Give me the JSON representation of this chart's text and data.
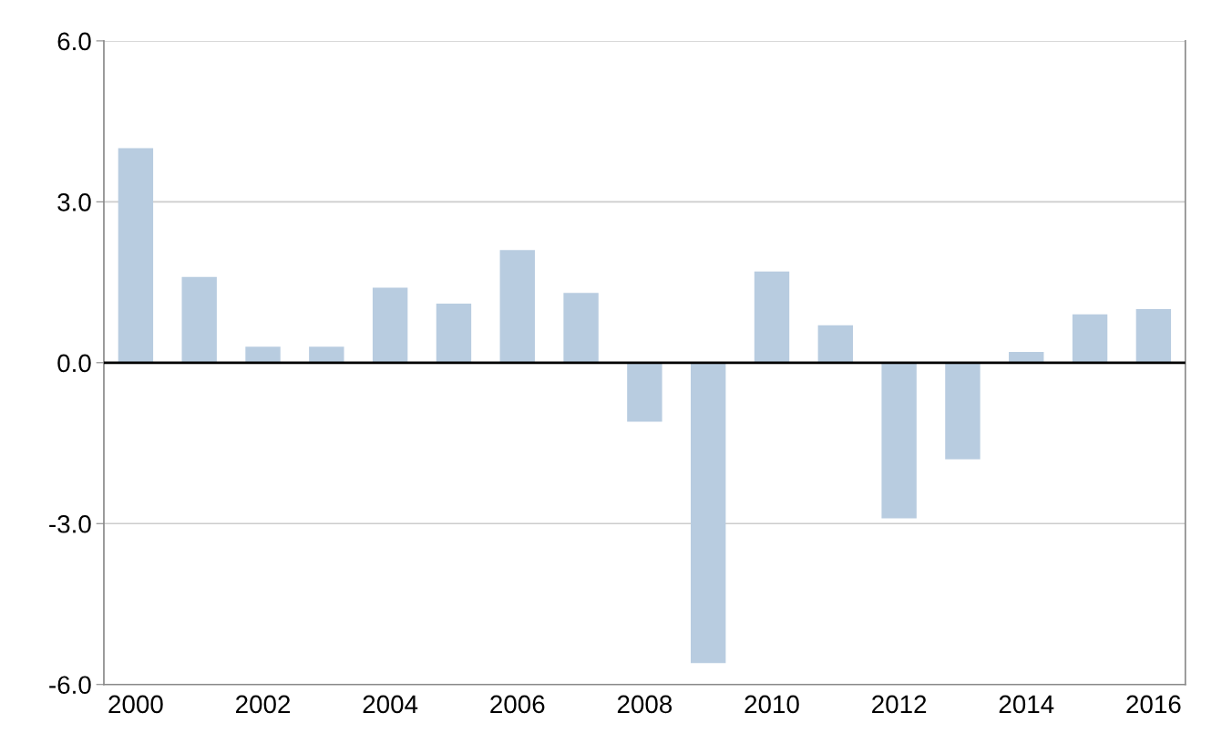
{
  "chart_data": {
    "type": "bar",
    "categories": [
      "2000",
      null,
      "2002",
      null,
      "2004",
      null,
      "2006",
      null,
      "2008",
      null,
      "2010",
      null,
      "2012",
      null,
      "2014",
      null,
      "2016"
    ],
    "values": [
      4.0,
      1.6,
      0.3,
      0.3,
      1.4,
      1.1,
      2.1,
      1.3,
      -1.1,
      -5.6,
      1.7,
      0.7,
      -2.9,
      -1.8,
      0.2,
      0.9,
      1.0
    ],
    "color": "#b8cce0",
    "ylim": [
      -6,
      6
    ],
    "yticks": [
      {
        "value": -6,
        "label": "-6.0"
      },
      {
        "value": -3,
        "label": "-3.0"
      },
      {
        "value": 0,
        "label": "0.0"
      },
      {
        "value": 3,
        "label": "3.0"
      },
      {
        "value": 6,
        "label": "6.0"
      }
    ],
    "grid": "y",
    "ref_lines": [
      {
        "axis": "y",
        "value": 0,
        "color": "#000000"
      }
    ]
  }
}
